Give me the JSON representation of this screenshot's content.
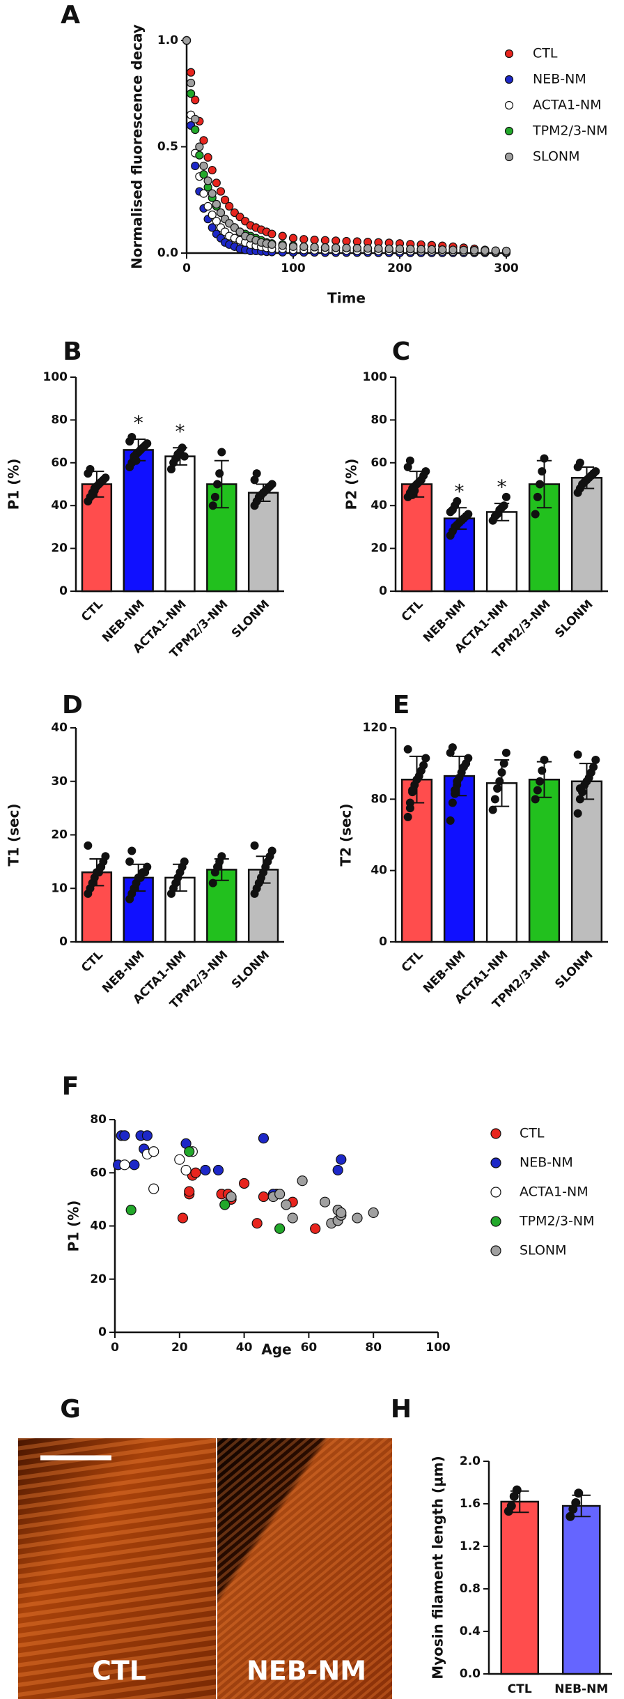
{
  "chart_data": [
    {
      "type": "scatter",
      "panel": "A",
      "ylabel": "Normalised fluorescence decay",
      "xlabel": "Time",
      "x": [
        0,
        4,
        8,
        12,
        16,
        20,
        24,
        28,
        32,
        36,
        40,
        45,
        50,
        55,
        60,
        65,
        70,
        75,
        80,
        90,
        100,
        110,
        120,
        130,
        140,
        150,
        160,
        170,
        180,
        190,
        200,
        210,
        220,
        230,
        240,
        250,
        260,
        270,
        280,
        290,
        300
      ],
      "xlim": [
        0,
        300
      ],
      "xticks": [
        0,
        100,
        200,
        300
      ],
      "ylim": [
        0,
        1
      ],
      "yticks": [
        {
          "value": 0,
          "label": "0.0"
        },
        {
          "value": 0.5,
          "label": "0.5"
        },
        {
          "value": 1,
          "label": "1.0"
        }
      ],
      "series": [
        {
          "name": "CTL",
          "color": "#e8251e",
          "values": [
            1.0,
            0.85,
            0.72,
            0.62,
            0.53,
            0.45,
            0.39,
            0.33,
            0.29,
            0.25,
            0.22,
            0.19,
            0.17,
            0.15,
            0.13,
            0.12,
            0.11,
            0.1,
            0.09,
            0.08,
            0.07,
            0.065,
            0.062,
            0.06,
            0.058,
            0.056,
            0.054,
            0.052,
            0.05,
            0.048,
            0.045,
            0.042,
            0.04,
            0.037,
            0.034,
            0.03,
            0.025,
            0.02,
            0.015,
            0.01,
            0.005
          ]
        },
        {
          "name": "NEB-NM",
          "color": "#1d28c8",
          "values": [
            1.0,
            0.6,
            0.41,
            0.29,
            0.21,
            0.16,
            0.12,
            0.09,
            0.07,
            0.05,
            0.04,
            0.03,
            0.02,
            0.015,
            0.01,
            0.01,
            0.008,
            0.006,
            0.005,
            0.004,
            0.003,
            0.003,
            0.003,
            0.002,
            0.002,
            0.002,
            0.002,
            0.002,
            0.001,
            0.001,
            0.001,
            0.001,
            0.001,
            0.001,
            0.001,
            0.001,
            0.001,
            0.001,
            0.001,
            0.001,
            0.001
          ]
        },
        {
          "name": "ACTA1-NM",
          "color": "#ffffff",
          "values": [
            1.0,
            0.65,
            0.47,
            0.36,
            0.28,
            0.22,
            0.18,
            0.15,
            0.12,
            0.1,
            0.08,
            0.07,
            0.06,
            0.05,
            0.04,
            0.035,
            0.03,
            0.025,
            0.02,
            0.02,
            0.015,
            0.015,
            0.014,
            0.013,
            0.012,
            0.012,
            0.011,
            0.011,
            0.01,
            0.01,
            0.01,
            0.009,
            0.009,
            0.008,
            0.008,
            0.007,
            0.007,
            0.006,
            0.006,
            0.005,
            0.005
          ]
        },
        {
          "name": "TPM2/3-NM",
          "color": "#22a82a",
          "values": [
            1.0,
            0.75,
            0.58,
            0.46,
            0.37,
            0.31,
            0.26,
            0.22,
            0.19,
            0.16,
            0.14,
            0.12,
            0.1,
            0.09,
            0.08,
            0.07,
            0.06,
            0.05,
            0.045,
            0.04,
            0.035,
            0.03,
            0.028,
            0.026,
            0.025,
            0.024,
            0.023,
            0.022,
            0.021,
            0.02,
            0.02,
            0.019,
            0.018,
            0.017,
            0.016,
            0.015,
            0.014,
            0.013,
            0.012,
            0.011,
            0.01
          ]
        },
        {
          "name": "SLONM",
          "color": "#a0a0a0",
          "values": [
            1.0,
            0.8,
            0.63,
            0.5,
            0.41,
            0.34,
            0.28,
            0.23,
            0.19,
            0.16,
            0.14,
            0.12,
            0.1,
            0.08,
            0.07,
            0.06,
            0.05,
            0.045,
            0.04,
            0.035,
            0.03,
            0.03,
            0.028,
            0.026,
            0.025,
            0.024,
            0.023,
            0.022,
            0.021,
            0.02,
            0.02,
            0.019,
            0.018,
            0.017,
            0.016,
            0.015,
            0.014,
            0.013,
            0.012,
            0.011,
            0.01
          ]
        }
      ]
    },
    {
      "type": "bar",
      "panel": "B",
      "ylabel": "P1 (%)",
      "categories": [
        "CTL",
        "NEB-NM",
        "ACTA1-NM",
        "TPM2/3-NM",
        "SLONM"
      ],
      "colors": [
        "#ff4d4d",
        "#1010ff",
        "#ffffff",
        "#22c01e",
        "#bdbdbd"
      ],
      "values": [
        50,
        66,
        63,
        50,
        46
      ],
      "errors": [
        6,
        5,
        4,
        11,
        4
      ],
      "annotations": [
        null,
        "*",
        "*",
        null,
        null
      ],
      "points": [
        [
          42,
          44,
          46,
          48,
          49,
          50,
          51,
          52,
          53,
          55,
          57,
          45,
          47
        ],
        [
          58,
          60,
          62,
          64,
          65,
          66,
          67,
          68,
          69,
          70,
          72,
          63,
          61
        ],
        [
          57,
          60,
          62,
          64,
          65,
          67,
          63
        ],
        [
          40,
          44,
          50,
          55,
          65
        ],
        [
          40,
          42,
          44,
          45,
          46,
          47,
          48,
          49,
          50,
          52,
          55
        ]
      ],
      "ylim": [
        0,
        100
      ],
      "yticks": [
        0,
        20,
        40,
        60,
        80,
        100
      ]
    },
    {
      "type": "bar",
      "panel": "C",
      "ylabel": "P2 (%)",
      "categories": [
        "CTL",
        "NEB-NM",
        "ACTA1-NM",
        "TPM2/3-NM",
        "SLONM"
      ],
      "colors": [
        "#ff4d4d",
        "#1010ff",
        "#ffffff",
        "#22c01e",
        "#bdbdbd"
      ],
      "values": [
        50,
        34,
        37,
        50,
        53
      ],
      "errors": [
        6,
        5,
        4,
        11,
        5
      ],
      "annotations": [
        null,
        "*",
        "*",
        null,
        null
      ],
      "points": [
        [
          44,
          46,
          48,
          49,
          50,
          51,
          52,
          54,
          56,
          58,
          61,
          45,
          47
        ],
        [
          26,
          28,
          30,
          31,
          32,
          33,
          34,
          35,
          36,
          37,
          38,
          40,
          42
        ],
        [
          33,
          35,
          36,
          38,
          39,
          40,
          44
        ],
        [
          36,
          44,
          50,
          56,
          62
        ],
        [
          46,
          48,
          50,
          51,
          52,
          53,
          54,
          55,
          56,
          58,
          60
        ]
      ],
      "ylim": [
        0,
        100
      ],
      "yticks": [
        0,
        20,
        40,
        60,
        80,
        100
      ]
    },
    {
      "type": "bar",
      "panel": "D",
      "ylabel": "T1 (sec)",
      "categories": [
        "CTL",
        "NEB-NM",
        "ACTA1-NM",
        "TPM2/3-NM",
        "SLONM"
      ],
      "colors": [
        "#ff4d4d",
        "#1010ff",
        "#ffffff",
        "#22c01e",
        "#bdbdbd"
      ],
      "values": [
        13,
        12,
        12,
        13.5,
        13.5
      ],
      "errors": [
        2.5,
        2.5,
        2.5,
        2,
        2.5
      ],
      "points": [
        [
          9,
          10,
          11,
          12,
          13,
          13,
          14,
          15,
          16,
          18
        ],
        [
          8,
          9,
          10,
          11,
          12,
          12,
          13,
          13,
          14,
          15,
          17
        ],
        [
          9,
          10,
          11,
          12,
          13,
          14,
          15
        ],
        [
          11,
          13,
          14,
          15,
          16
        ],
        [
          9,
          10,
          11,
          12,
          13,
          14,
          15,
          16,
          17,
          18
        ]
      ],
      "ylim": [
        0,
        40
      ],
      "yticks": [
        0,
        10,
        20,
        30,
        40
      ]
    },
    {
      "type": "bar",
      "panel": "E",
      "ylabel": "T2 (sec)",
      "categories": [
        "CTL",
        "NEB-NM",
        "ACTA1-NM",
        "TPM2/3-NM",
        "SLONM"
      ],
      "colors": [
        "#ff4d4d",
        "#1010ff",
        "#ffffff",
        "#22c01e",
        "#bdbdbd"
      ],
      "values": [
        91,
        93,
        89,
        91,
        90
      ],
      "errors": [
        13,
        11,
        13,
        10,
        10
      ],
      "points": [
        [
          70,
          78,
          84,
          88,
          91,
          93,
          96,
          99,
          103,
          108,
          75,
          85
        ],
        [
          68,
          78,
          83,
          88,
          92,
          95,
          98,
          100,
          103,
          106,
          109,
          85,
          90
        ],
        [
          74,
          80,
          86,
          90,
          95,
          100,
          106
        ],
        [
          80,
          85,
          90,
          96,
          102
        ],
        [
          72,
          80,
          84,
          88,
          90,
          92,
          95,
          98,
          102,
          105,
          86
        ]
      ],
      "ylim": [
        0,
        120
      ],
      "yticks": [
        0,
        40,
        80,
        120
      ]
    },
    {
      "type": "scatter",
      "panel": "F",
      "ylabel": "P1 (%)",
      "xlabel": "Age",
      "xlim": [
        0,
        100
      ],
      "xticks": [
        0,
        20,
        40,
        60,
        80,
        100
      ],
      "ylim": [
        0,
        80
      ],
      "yticks": [
        0,
        20,
        40,
        60,
        80
      ],
      "series": [
        {
          "name": "CTL",
          "color": "#e8251e",
          "x": [
            21,
            23,
            23,
            24,
            25,
            33,
            35,
            36,
            40,
            44,
            46,
            50,
            55,
            62
          ],
          "values": [
            43,
            52,
            53,
            59,
            60,
            52,
            52,
            50,
            56,
            41,
            51,
            52,
            49,
            39
          ]
        },
        {
          "name": "NEB-NM",
          "color": "#1d28c8",
          "x": [
            1,
            2,
            3,
            6,
            8,
            10,
            9,
            22,
            28,
            32,
            46,
            49,
            69,
            70
          ],
          "values": [
            63,
            74,
            74,
            63,
            74,
            74,
            69,
            71,
            61,
            61,
            73,
            52,
            61,
            65
          ]
        },
        {
          "name": "ACTA1-NM",
          "color": "#ffffff",
          "x": [
            3,
            10,
            12,
            12,
            20,
            22,
            24
          ],
          "values": [
            63,
            67,
            54,
            68,
            65,
            61,
            68
          ]
        },
        {
          "name": "TPM2/3-NM",
          "color": "#22a82a",
          "x": [
            5,
            23,
            34,
            51
          ],
          "values": [
            46,
            68,
            48,
            39
          ]
        },
        {
          "name": "SLONM",
          "color": "#a0a0a0",
          "x": [
            36,
            49,
            51,
            53,
            55,
            58,
            65,
            67,
            69,
            69,
            70,
            70,
            75,
            80
          ],
          "values": [
            51,
            51,
            52,
            48,
            43,
            57,
            49,
            41,
            42,
            46,
            44,
            45,
            43,
            45
          ]
        }
      ]
    },
    {
      "type": "bar",
      "panel": "H",
      "ylabel": "Myosin filament length (µm)",
      "categories": [
        "CTL",
        "NEB-NM"
      ],
      "colors": [
        "#ff4d4d",
        "#6565ff"
      ],
      "values": [
        1.62,
        1.58
      ],
      "errors": [
        0.1,
        0.1
      ],
      "points": [
        [
          1.53,
          1.58,
          1.67,
          1.73
        ],
        [
          1.48,
          1.55,
          1.61,
          1.7
        ]
      ],
      "ylim": [
        0,
        2
      ],
      "yticks": [
        {
          "value": 0,
          "label": "0.0"
        },
        {
          "value": 0.4,
          "label": "0.4"
        },
        {
          "value": 0.8,
          "label": "0.8"
        },
        {
          "value": 1.2,
          "label": "1.2"
        },
        {
          "value": 1.6,
          "label": "1.6"
        },
        {
          "value": 2,
          "label": "2.0"
        }
      ]
    }
  ],
  "micrographs": {
    "panel": "G",
    "labels": [
      "CTL",
      "NEB-NM"
    ]
  }
}
